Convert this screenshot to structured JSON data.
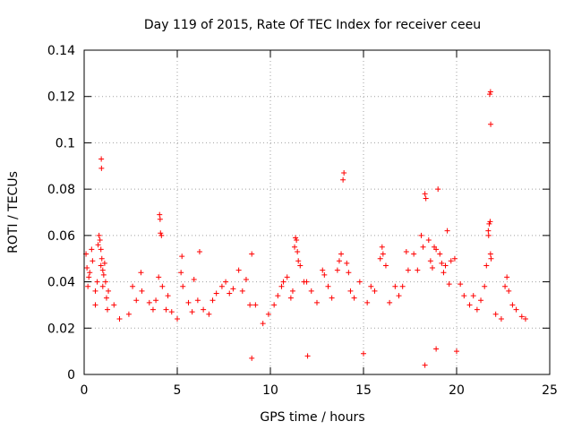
{
  "chart_data": {
    "type": "scatter",
    "title": "Day 119 of 2015, Rate Of TEC Index for receiver ceeu",
    "xlabel": "GPS time / hours",
    "ylabel": "ROTI / TECUs",
    "xlim": [
      0,
      25
    ],
    "ylim": [
      0,
      0.14
    ],
    "xticks": [
      0,
      5,
      10,
      15,
      20,
      25
    ],
    "xtick_labels": [
      "0",
      "5",
      "10",
      "15",
      "20",
      "25"
    ],
    "yticks": [
      0,
      0.02,
      0.04,
      0.06,
      0.08,
      0.1,
      0.12,
      0.14
    ],
    "ytick_labels": [
      "0",
      "0.02",
      "0.04",
      "0.06",
      "0.08",
      "0.1",
      "0.12",
      "0.14"
    ],
    "grid": true,
    "marker": "plus",
    "color": "#ff0000",
    "series": [
      {
        "name": "ROTI",
        "points": [
          [
            0.1,
            0.052
          ],
          [
            0.15,
            0.046
          ],
          [
            0.2,
            0.038
          ],
          [
            0.25,
            0.042
          ],
          [
            0.3,
            0.044
          ],
          [
            0.4,
            0.054
          ],
          [
            0.45,
            0.049
          ],
          [
            0.6,
            0.03
          ],
          [
            0.6,
            0.036
          ],
          [
            0.7,
            0.04
          ],
          [
            0.75,
            0.056
          ],
          [
            0.8,
            0.06
          ],
          [
            0.85,
            0.058
          ],
          [
            0.9,
            0.054
          ],
          [
            0.95,
            0.05
          ],
          [
            0.9,
            0.047
          ],
          [
            1.0,
            0.045
          ],
          [
            1.05,
            0.043
          ],
          [
            1.1,
            0.048
          ],
          [
            1.15,
            0.04
          ],
          [
            1.2,
            0.033
          ],
          [
            1.0,
            0.038
          ],
          [
            1.25,
            0.028
          ],
          [
            1.3,
            0.036
          ],
          [
            0.92,
            0.093
          ],
          [
            0.93,
            0.089
          ],
          [
            1.6,
            0.03
          ],
          [
            1.9,
            0.024
          ],
          [
            2.4,
            0.026
          ],
          [
            2.6,
            0.038
          ],
          [
            2.8,
            0.032
          ],
          [
            3.05,
            0.044
          ],
          [
            3.1,
            0.036
          ],
          [
            3.5,
            0.031
          ],
          [
            3.7,
            0.028
          ],
          [
            3.85,
            0.032
          ],
          [
            4.0,
            0.042
          ],
          [
            4.05,
            0.069
          ],
          [
            4.08,
            0.067
          ],
          [
            4.1,
            0.061
          ],
          [
            4.15,
            0.06
          ],
          [
            4.2,
            0.038
          ],
          [
            4.4,
            0.028
          ],
          [
            4.5,
            0.034
          ],
          [
            4.7,
            0.027
          ],
          [
            5.0,
            0.024
          ],
          [
            5.2,
            0.044
          ],
          [
            5.25,
            0.051
          ],
          [
            5.3,
            0.038
          ],
          [
            5.6,
            0.031
          ],
          [
            5.8,
            0.027
          ],
          [
            5.9,
            0.041
          ],
          [
            6.1,
            0.032
          ],
          [
            6.2,
            0.053
          ],
          [
            6.4,
            0.028
          ],
          [
            6.7,
            0.026
          ],
          [
            6.9,
            0.032
          ],
          [
            7.1,
            0.035
          ],
          [
            7.4,
            0.038
          ],
          [
            7.6,
            0.04
          ],
          [
            7.8,
            0.035
          ],
          [
            8.0,
            0.037
          ],
          [
            8.3,
            0.045
          ],
          [
            8.5,
            0.036
          ],
          [
            8.7,
            0.041
          ],
          [
            8.9,
            0.03
          ],
          [
            9.0,
            0.052
          ],
          [
            9.2,
            0.03
          ],
          [
            9.6,
            0.022
          ],
          [
            9.9,
            0.026
          ],
          [
            10.2,
            0.03
          ],
          [
            10.4,
            0.034
          ],
          [
            10.6,
            0.038
          ],
          [
            10.7,
            0.04
          ],
          [
            10.9,
            0.042
          ],
          [
            11.1,
            0.033
          ],
          [
            11.2,
            0.036
          ],
          [
            11.3,
            0.055
          ],
          [
            11.35,
            0.059
          ],
          [
            11.4,
            0.058
          ],
          [
            11.45,
            0.053
          ],
          [
            11.5,
            0.049
          ],
          [
            11.6,
            0.047
          ],
          [
            11.8,
            0.04
          ],
          [
            11.95,
            0.04
          ],
          [
            12.2,
            0.036
          ],
          [
            12.5,
            0.031
          ],
          [
            12.8,
            0.045
          ],
          [
            12.9,
            0.043
          ],
          [
            13.1,
            0.038
          ],
          [
            13.3,
            0.033
          ],
          [
            13.6,
            0.045
          ],
          [
            13.7,
            0.049
          ],
          [
            13.8,
            0.052
          ],
          [
            13.9,
            0.084
          ],
          [
            13.95,
            0.087
          ],
          [
            14.1,
            0.048
          ],
          [
            14.2,
            0.044
          ],
          [
            14.3,
            0.036
          ],
          [
            14.5,
            0.033
          ],
          [
            14.8,
            0.04
          ],
          [
            15.2,
            0.031
          ],
          [
            15.4,
            0.038
          ],
          [
            15.6,
            0.036
          ],
          [
            15.9,
            0.05
          ],
          [
            16.0,
            0.055
          ],
          [
            16.05,
            0.052
          ],
          [
            16.2,
            0.047
          ],
          [
            16.4,
            0.031
          ],
          [
            16.7,
            0.038
          ],
          [
            16.9,
            0.034
          ],
          [
            17.1,
            0.038
          ],
          [
            17.3,
            0.053
          ],
          [
            17.4,
            0.045
          ],
          [
            17.7,
            0.052
          ],
          [
            17.9,
            0.045
          ],
          [
            18.1,
            0.06
          ],
          [
            18.2,
            0.055
          ],
          [
            18.3,
            0.078
          ],
          [
            18.35,
            0.076
          ],
          [
            18.5,
            0.058
          ],
          [
            18.6,
            0.049
          ],
          [
            18.7,
            0.046
          ],
          [
            18.8,
            0.055
          ],
          [
            18.9,
            0.054
          ],
          [
            19.0,
            0.08
          ],
          [
            19.1,
            0.052
          ],
          [
            19.2,
            0.048
          ],
          [
            19.3,
            0.044
          ],
          [
            19.4,
            0.047
          ],
          [
            19.5,
            0.062
          ],
          [
            19.6,
            0.039
          ],
          [
            19.7,
            0.049
          ],
          [
            19.9,
            0.05
          ],
          [
            20.2,
            0.039
          ],
          [
            20.4,
            0.034
          ],
          [
            20.7,
            0.03
          ],
          [
            20.9,
            0.034
          ],
          [
            21.1,
            0.028
          ],
          [
            21.3,
            0.032
          ],
          [
            21.5,
            0.038
          ],
          [
            21.6,
            0.047
          ],
          [
            21.7,
            0.062
          ],
          [
            21.72,
            0.06
          ],
          [
            21.75,
            0.065
          ],
          [
            21.8,
            0.066
          ],
          [
            21.82,
            0.052
          ],
          [
            21.85,
            0.05
          ],
          [
            21.78,
            0.121
          ],
          [
            21.82,
            0.122
          ],
          [
            21.83,
            0.108
          ],
          [
            22.1,
            0.026
          ],
          [
            22.4,
            0.024
          ],
          [
            22.6,
            0.038
          ],
          [
            22.7,
            0.042
          ],
          [
            22.8,
            0.036
          ],
          [
            23.0,
            0.03
          ],
          [
            23.2,
            0.028
          ],
          [
            23.5,
            0.025
          ],
          [
            23.7,
            0.024
          ],
          [
            18.9,
            0.011
          ],
          [
            18.3,
            0.004
          ],
          [
            9.0,
            0.007
          ],
          [
            12.0,
            0.008
          ],
          [
            15.0,
            0.009
          ],
          [
            20.0,
            0.01
          ]
        ]
      }
    ]
  }
}
